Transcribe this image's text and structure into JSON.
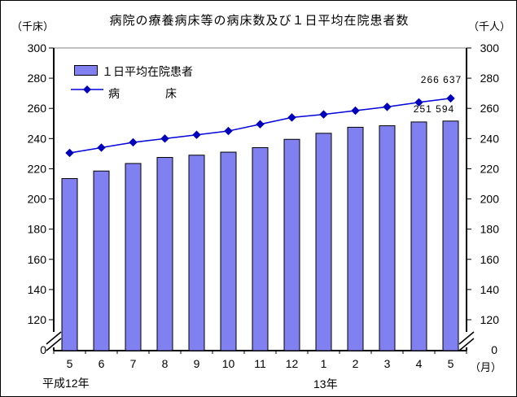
{
  "title": "病院の療養病床等の病床数及び１日平均在院患者数",
  "left_axis_unit": "（千床）",
  "right_axis_unit": "（千人）",
  "legend": {
    "bar_label": "１日平均在院患者",
    "line_label": "病　　　　床"
  },
  "annotations": {
    "line_last_value": "266 637",
    "bar_last_value": "251 594"
  },
  "x_axis": {
    "unit": "（月）",
    "era_left": "平成12年",
    "era_right": "13年",
    "origin_label": "0"
  },
  "colors": {
    "bar_fill": "#8080F0",
    "bar_border": "#000000",
    "line_stroke": "#0000DD",
    "marker_fill": "#0000BB",
    "axis": "#000000",
    "plot_top_border": "#808080"
  },
  "chart_data": {
    "type": "bar+line",
    "title": "病院の療養病床等の病床数及び１日平均在院患者数",
    "categories": [
      "5",
      "6",
      "7",
      "8",
      "9",
      "10",
      "11",
      "12",
      "1",
      "2",
      "3",
      "4",
      "5"
    ],
    "series": [
      {
        "name": "１日平均在院患者",
        "type": "bar",
        "unit": "千人",
        "values": [
          213.5,
          218.5,
          223.5,
          227.5,
          229,
          231,
          234,
          239.5,
          243.5,
          247.5,
          248.5,
          251,
          251.594
        ]
      },
      {
        "name": "病床",
        "type": "line",
        "unit": "千床",
        "marker": "diamond",
        "values": [
          230.5,
          234,
          237.5,
          240,
          242.5,
          245,
          249.5,
          254,
          256,
          258.5,
          261,
          264,
          266.637
        ]
      }
    ],
    "y_ticks": [
      120,
      140,
      160,
      180,
      200,
      220,
      240,
      260,
      280,
      300
    ],
    "ylim": [
      120,
      300
    ],
    "axis_break_to_zero": true,
    "grid": false,
    "legend_position": "top-left",
    "last_point_labels": {
      "病床": "266 637",
      "１日平均在院患者": "251 594"
    }
  }
}
